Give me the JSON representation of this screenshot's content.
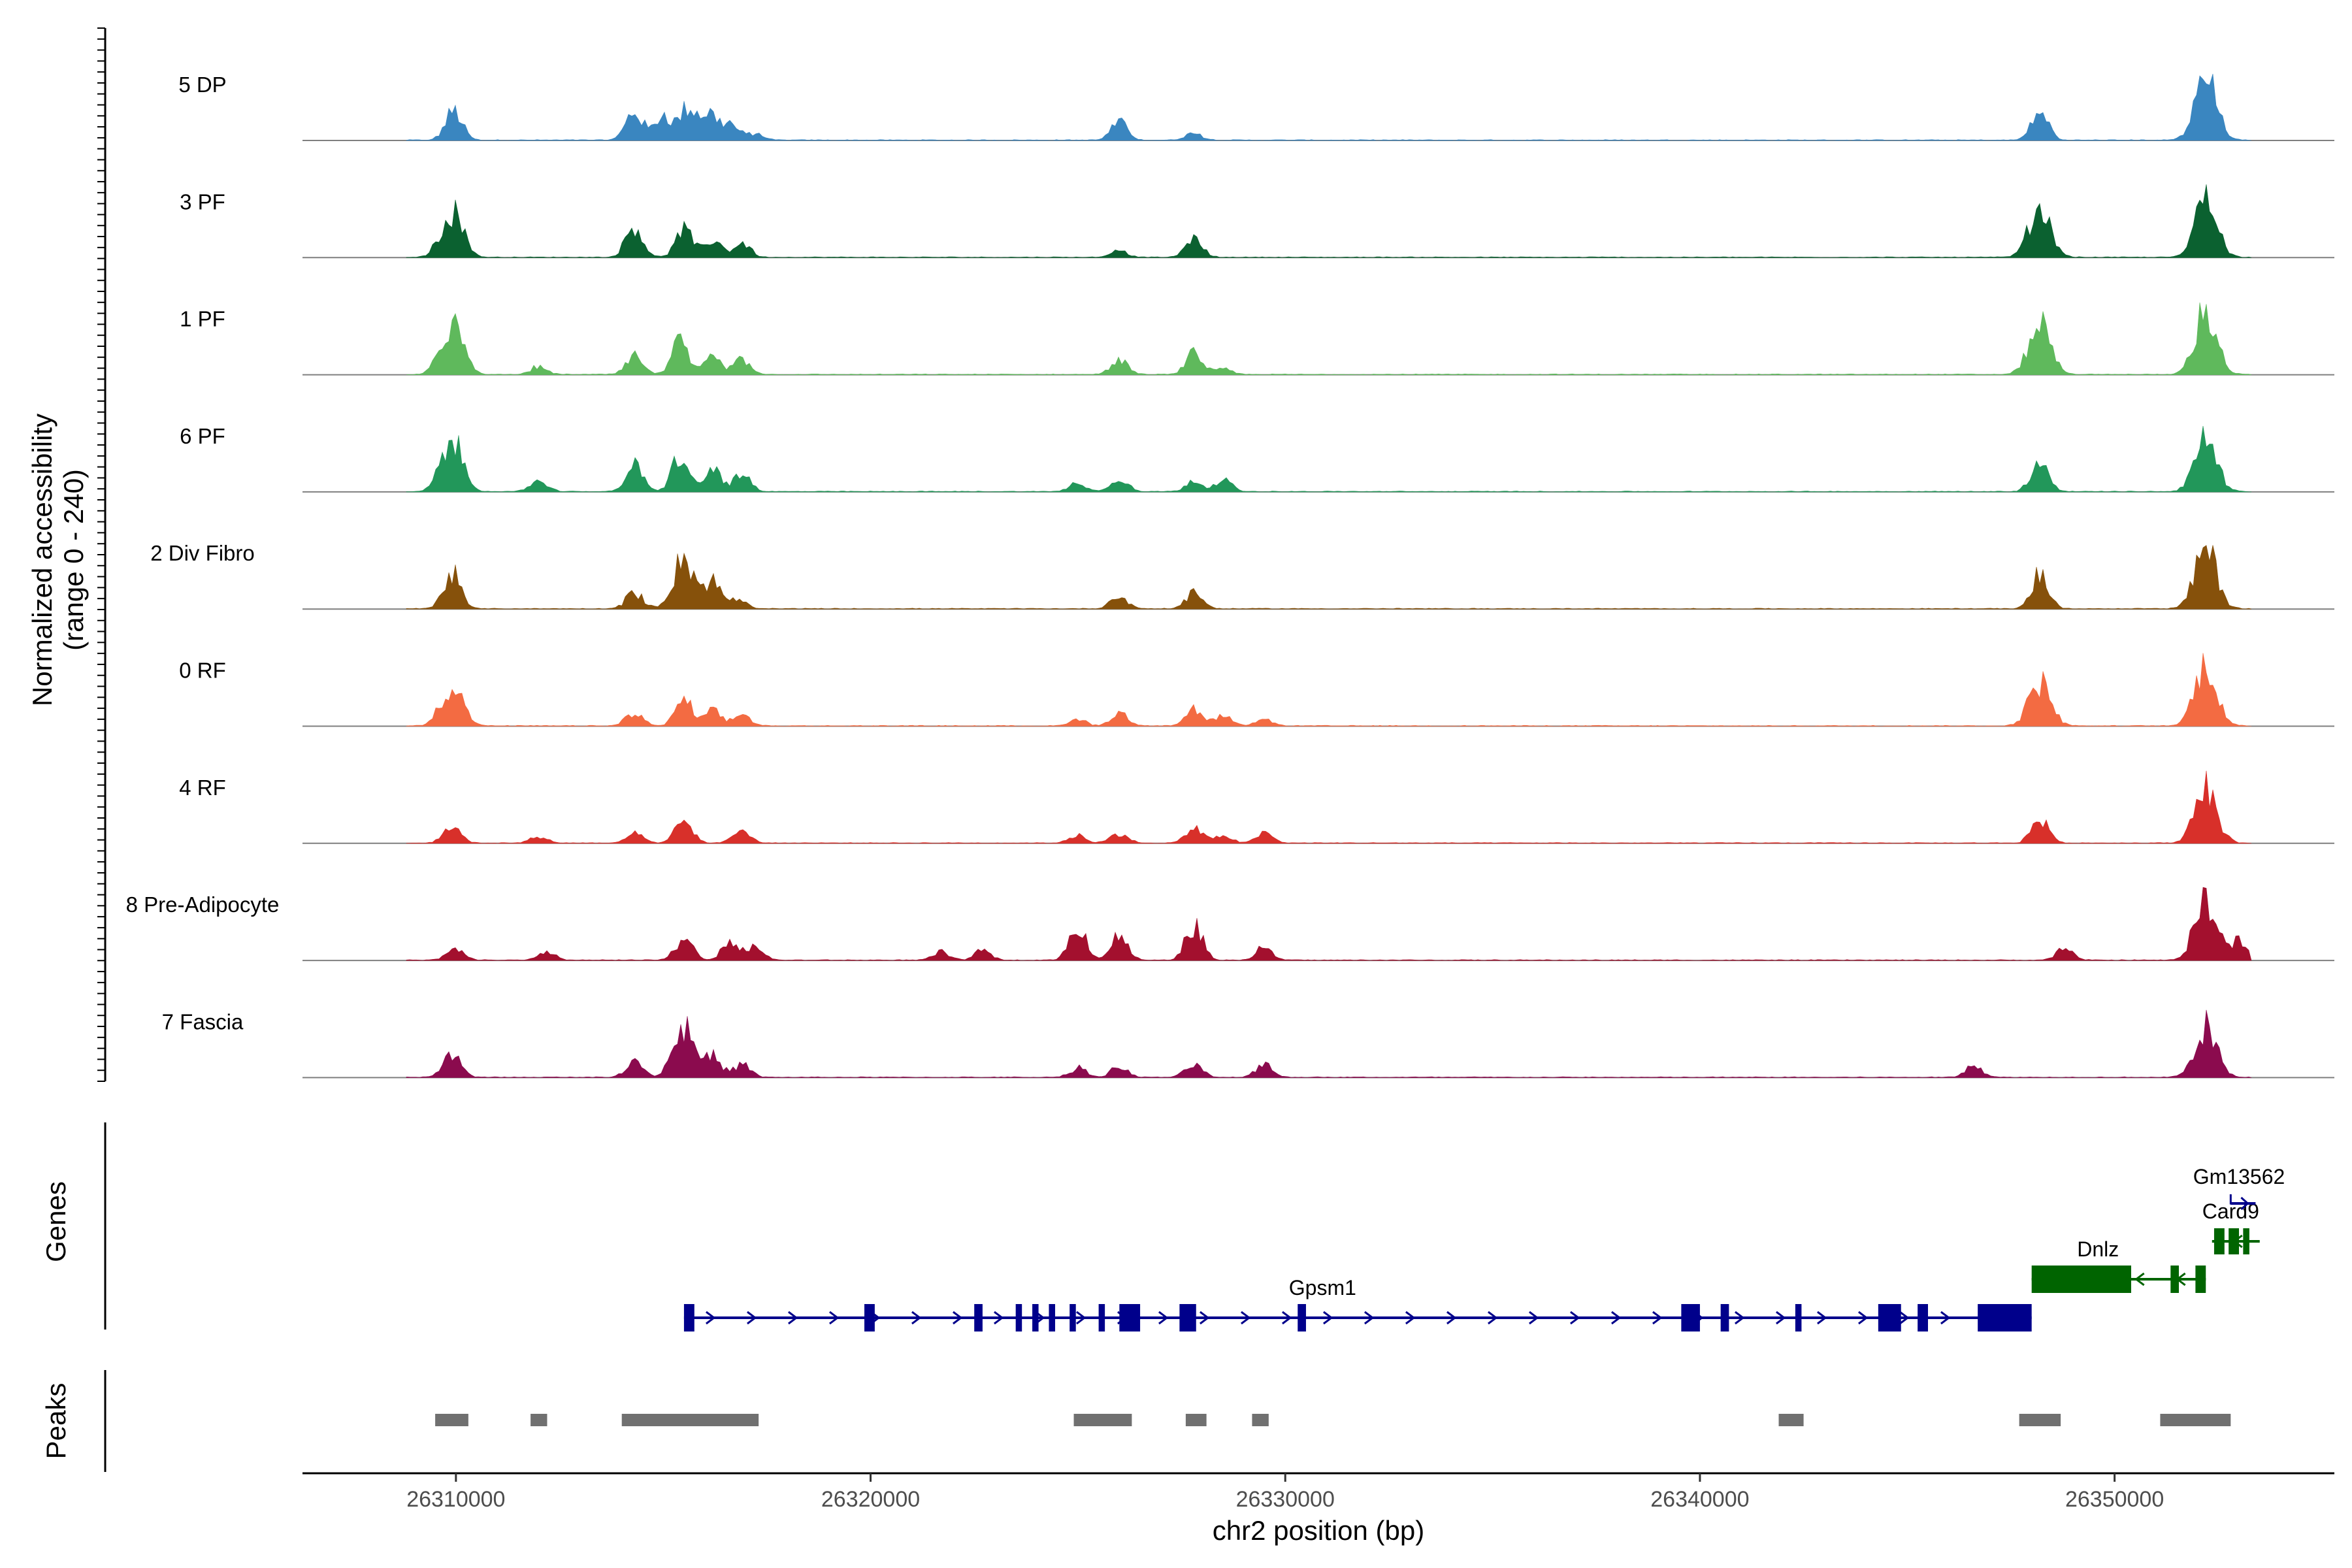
{
  "chart_data": {
    "type": "area",
    "title": "",
    "xlabel": "chr2 position (bp)",
    "ylabel": "Normalized accessibility",
    "ylabel_range": "(range 0 - 240)",
    "xlim": [
      26306300,
      26355300
    ],
    "ylim": [
      0,
      240
    ],
    "x_ticks": [
      {
        "value": 26310000,
        "label": "26310000"
      },
      {
        "value": 26320000,
        "label": "26320000"
      },
      {
        "value": 26330000,
        "label": "26330000"
      },
      {
        "value": 26340000,
        "label": "26340000"
      },
      {
        "value": 26350000,
        "label": "26350000"
      }
    ],
    "series": [
      {
        "name": "5 DP",
        "color": "#3A86C0",
        "peaks": [
          [
            26309950,
            0.45
          ],
          [
            26314300,
            0.45
          ],
          [
            26315000,
            0.4
          ],
          [
            26315600,
            0.5
          ],
          [
            26316100,
            0.4
          ],
          [
            26316600,
            0.25
          ],
          [
            26317200,
            0.1
          ],
          [
            26326000,
            0.27
          ],
          [
            26327800,
            0.1
          ],
          [
            26348200,
            0.44
          ],
          [
            26352200,
            0.95
          ]
        ]
      },
      {
        "name": "3 PF",
        "color": "#0B6130",
        "peaks": [
          [
            26309900,
            0.72
          ],
          [
            26314300,
            0.5
          ],
          [
            26315500,
            0.42
          ],
          [
            26316200,
            0.28
          ],
          [
            26316900,
            0.22
          ],
          [
            26326000,
            0.1
          ],
          [
            26327800,
            0.28
          ],
          [
            26348200,
            0.78
          ],
          [
            26352200,
            0.95
          ]
        ]
      },
      {
        "name": "1 PF",
        "color": "#5FB95C",
        "peaks": [
          [
            26309900,
            0.78
          ],
          [
            26312000,
            0.12
          ],
          [
            26314300,
            0.3
          ],
          [
            26315400,
            0.48
          ],
          [
            26316200,
            0.25
          ],
          [
            26316900,
            0.22
          ],
          [
            26326000,
            0.22
          ],
          [
            26327800,
            0.32
          ],
          [
            26328500,
            0.1
          ],
          [
            26348200,
            0.8
          ],
          [
            26352200,
            1.0
          ]
        ]
      },
      {
        "name": "6 PF",
        "color": "#22975A",
        "peaks": [
          [
            26309900,
            0.78
          ],
          [
            26312000,
            0.18
          ],
          [
            26314300,
            0.4
          ],
          [
            26315400,
            0.55
          ],
          [
            26316200,
            0.35
          ],
          [
            26316900,
            0.25
          ],
          [
            26325000,
            0.14
          ],
          [
            26326000,
            0.22
          ],
          [
            26327800,
            0.18
          ],
          [
            26328500,
            0.18
          ],
          [
            26348200,
            0.55
          ],
          [
            26352200,
            0.82
          ]
        ]
      },
      {
        "name": "2 Div Fibro",
        "color": "#86510B",
        "peaks": [
          [
            26309900,
            0.55
          ],
          [
            26314300,
            0.25
          ],
          [
            26315500,
            0.78
          ],
          [
            26316200,
            0.4
          ],
          [
            26316800,
            0.15
          ],
          [
            26326000,
            0.2
          ],
          [
            26327800,
            0.24
          ],
          [
            26348200,
            0.58
          ],
          [
            26352200,
            0.92
          ]
        ]
      },
      {
        "name": "0 RF",
        "color": "#F36B42",
        "peaks": [
          [
            26309900,
            0.65
          ],
          [
            26314300,
            0.2
          ],
          [
            26315500,
            0.4
          ],
          [
            26316200,
            0.22
          ],
          [
            26316900,
            0.18
          ],
          [
            26325000,
            0.1
          ],
          [
            26326000,
            0.2
          ],
          [
            26327800,
            0.26
          ],
          [
            26328500,
            0.15
          ],
          [
            26329500,
            0.1
          ],
          [
            26348200,
            0.68
          ],
          [
            26352200,
            1.0
          ]
        ]
      },
      {
        "name": "4 RF",
        "color": "#D8302A",
        "peaks": [
          [
            26309900,
            0.3
          ],
          [
            26312000,
            0.1
          ],
          [
            26314300,
            0.15
          ],
          [
            26315500,
            0.35
          ],
          [
            26316900,
            0.22
          ],
          [
            26325000,
            0.12
          ],
          [
            26326000,
            0.15
          ],
          [
            26327800,
            0.22
          ],
          [
            26328500,
            0.12
          ],
          [
            26329500,
            0.15
          ],
          [
            26348200,
            0.38
          ],
          [
            26352200,
            0.85
          ]
        ]
      },
      {
        "name": "8 Pre-Adipocyte",
        "color": "#A3102E",
        "peaks": [
          [
            26310000,
            0.2
          ],
          [
            26312200,
            0.12
          ],
          [
            26315500,
            0.35
          ],
          [
            26316600,
            0.25
          ],
          [
            26317200,
            0.22
          ],
          [
            26321700,
            0.12
          ],
          [
            26322700,
            0.14
          ],
          [
            26325000,
            0.55
          ],
          [
            26326000,
            0.38
          ],
          [
            26327800,
            0.55
          ],
          [
            26329500,
            0.2
          ],
          [
            26348800,
            0.18
          ],
          [
            26352200,
            1.0
          ],
          [
            26353000,
            0.28
          ]
        ]
      },
      {
        "name": "7 Fascia",
        "color": "#8B0B4E",
        "peaks": [
          [
            26309900,
            0.4
          ],
          [
            26314300,
            0.28
          ],
          [
            26315500,
            0.78
          ],
          [
            26316200,
            0.3
          ],
          [
            26316900,
            0.2
          ],
          [
            26325000,
            0.14
          ],
          [
            26326000,
            0.16
          ],
          [
            26327800,
            0.2
          ],
          [
            26329500,
            0.22
          ],
          [
            26346600,
            0.18
          ],
          [
            26352200,
            0.78
          ]
        ]
      }
    ],
    "tracks": {
      "genes_label": "Genes",
      "peaks_label": "Peaks"
    },
    "genes": [
      {
        "name": "Gpsm1",
        "color": "#00008B",
        "strand": "+",
        "start": 26315500,
        "end": 26348000,
        "exons": [
          [
            26315500,
            26315750
          ],
          [
            26319850,
            26320100
          ],
          [
            26322500,
            26322700
          ],
          [
            26323500,
            26323650
          ],
          [
            26323900,
            26324050
          ],
          [
            26324300,
            26324450
          ],
          [
            26324800,
            26324950
          ],
          [
            26325500,
            26325650
          ],
          [
            26326000,
            26326500
          ],
          [
            26327450,
            26327850
          ],
          [
            26330300,
            26330500
          ],
          [
            26339550,
            26340000
          ],
          [
            26340500,
            26340700
          ],
          [
            26342300,
            26342450
          ],
          [
            26344300,
            26344850
          ],
          [
            26345250,
            26345500
          ],
          [
            26346700,
            26348000
          ]
        ],
        "label_x": 26330900,
        "row": 0
      },
      {
        "name": "Dnlz",
        "color": "#006400",
        "strand": "-",
        "start": 26348000,
        "end": 26352200,
        "exons": [
          [
            26348000,
            26350400
          ],
          [
            26351350,
            26351550
          ],
          [
            26351950,
            26352200
          ]
        ],
        "label_x": 26349600,
        "row": 1
      },
      {
        "name": "Card9",
        "color": "#006400",
        "strand": "-",
        "start": 26352350,
        "end": 26353500,
        "exons": [
          [
            26352400,
            26352650
          ],
          [
            26352750,
            26353000
          ],
          [
            26353100,
            26353250
          ]
        ],
        "label_x": 26352800,
        "row": 2
      },
      {
        "name": "Gm13562",
        "color": "#00008B",
        "strand": "+",
        "start": 26352800,
        "end": 26353400,
        "exons": [],
        "label_x": 26353000,
        "row": 3
      }
    ],
    "peaks": [
      [
        26309500,
        26310300
      ],
      [
        26311800,
        26312200
      ],
      [
        26314000,
        26317300
      ],
      [
        26324900,
        26326300
      ],
      [
        26327600,
        26328100
      ],
      [
        26329200,
        26329600
      ],
      [
        26341900,
        26342500
      ],
      [
        26347700,
        26348700
      ],
      [
        26351100,
        26352800
      ]
    ]
  }
}
